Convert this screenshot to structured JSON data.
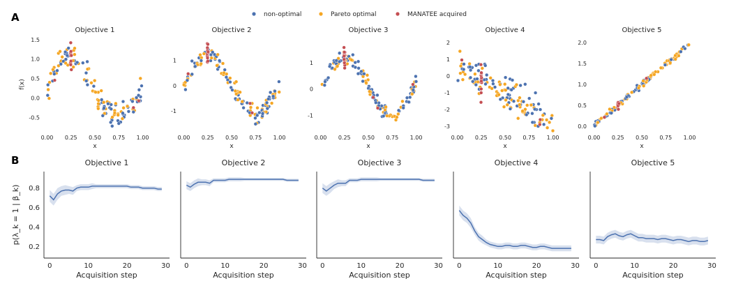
{
  "panel_labels": [
    "A",
    "B"
  ],
  "legend": {
    "position": "top-center",
    "entries": [
      {
        "label": "non-optimal",
        "color": "#4c72b0"
      },
      {
        "label": "Pareto optimal",
        "color": "#f5a623"
      },
      {
        "label": "MANATEE acquired",
        "color": "#c44e52"
      }
    ]
  },
  "chart_data": [
    {
      "type": "scatter",
      "title": "Objective 1",
      "xlabel": "x",
      "ylabel": "f(x)",
      "xlim": [
        -0.04,
        1.04
      ],
      "ylim": [
        -0.85,
        1.55
      ],
      "xticks": [
        "0.00",
        "0.25",
        "0.50",
        "0.75",
        "1.00"
      ],
      "xtick_values": [
        0,
        0.25,
        0.5,
        0.75,
        1.0
      ],
      "yticks": [
        "-0.5",
        "0.0",
        "0.5",
        "1.0",
        "1.5"
      ],
      "ytick_values": [
        -0.5,
        0,
        0.5,
        1.0,
        1.5
      ]
    },
    {
      "type": "scatter",
      "title": "Objective 2",
      "xlabel": "x",
      "ylabel": "",
      "xlim": [
        -0.04,
        1.04
      ],
      "ylim": [
        -1.8,
        1.9
      ],
      "xticks": [
        "0.00",
        "0.25",
        "0.50",
        "0.75",
        "1.00"
      ],
      "xtick_values": [
        0,
        0.25,
        0.5,
        0.75,
        1.0
      ],
      "yticks": [
        "-1",
        "0",
        "1"
      ],
      "ytick_values": [
        -1,
        0,
        1
      ]
    },
    {
      "type": "scatter",
      "title": "Objective 3",
      "xlabel": "x",
      "ylabel": "",
      "xlim": [
        -0.04,
        1.04
      ],
      "ylim": [
        -1.6,
        1.95
      ],
      "xticks": [
        "0.00",
        "0.25",
        "0.50",
        "0.75",
        "1.00"
      ],
      "xtick_values": [
        0,
        0.25,
        0.5,
        0.75,
        1.0
      ],
      "yticks": [
        "-1",
        "0",
        "1"
      ],
      "ytick_values": [
        -1,
        0,
        1
      ]
    },
    {
      "type": "scatter",
      "title": "Objective 4",
      "xlabel": "x",
      "ylabel": "",
      "xlim": [
        -0.04,
        1.04
      ],
      "ylim": [
        -3.3,
        2.3
      ],
      "xticks": [
        "0.00",
        "0.25",
        "0.50",
        "0.75",
        "1.00"
      ],
      "xtick_values": [
        0,
        0.25,
        0.5,
        0.75,
        1.0
      ],
      "yticks": [
        "-3",
        "-2",
        "-1",
        "0",
        "1",
        "2"
      ],
      "ytick_values": [
        -3,
        -2,
        -1,
        0,
        1,
        2
      ]
    },
    {
      "type": "scatter",
      "title": "Objective 5",
      "xlabel": "x",
      "ylabel": "",
      "xlim": [
        -0.04,
        1.04
      ],
      "ylim": [
        -0.12,
        2.12
      ],
      "xticks": [
        "0.00",
        "0.25",
        "0.50",
        "0.75",
        "1.00"
      ],
      "xtick_values": [
        0,
        0.25,
        0.5,
        0.75,
        1.0
      ],
      "yticks": [
        "0.0",
        "0.5",
        "1.0",
        "1.5",
        "2.0"
      ],
      "ytick_values": [
        0,
        0.5,
        1.0,
        1.5,
        2.0
      ]
    },
    {
      "type": "line",
      "title": "Objective 1",
      "xlabel": "Acquisition step",
      "ylabel": "p(λ_k = 1 | β_k)",
      "xlim": [
        -1.5,
        31
      ],
      "ylim": [
        0.08,
        0.97
      ],
      "xticks": [
        "0",
        "10",
        "20",
        "30"
      ],
      "xtick_values": [
        0,
        10,
        20,
        30
      ],
      "yticks": [
        "0.2",
        "0.4",
        "0.6",
        "0.8"
      ],
      "ytick_values": [
        0.2,
        0.4,
        0.6,
        0.8
      ],
      "x": [
        0,
        1,
        2,
        3,
        4,
        5,
        6,
        7,
        8,
        9,
        10,
        11,
        12,
        13,
        14,
        15,
        16,
        17,
        18,
        19,
        20,
        21,
        22,
        23,
        24,
        25,
        26,
        27,
        28,
        29
      ],
      "y": [
        0.72,
        0.68,
        0.74,
        0.77,
        0.78,
        0.78,
        0.77,
        0.8,
        0.81,
        0.81,
        0.81,
        0.82,
        0.82,
        0.82,
        0.82,
        0.82,
        0.82,
        0.82,
        0.82,
        0.82,
        0.82,
        0.81,
        0.81,
        0.81,
        0.8,
        0.8,
        0.8,
        0.8,
        0.79,
        0.79
      ],
      "band": [
        0.06,
        0.06,
        0.06,
        0.05,
        0.05,
        0.04,
        0.04,
        0.03,
        0.03,
        0.03,
        0.03,
        0.03,
        0.02,
        0.02,
        0.02,
        0.02,
        0.02,
        0.02,
        0.02,
        0.02,
        0.02,
        0.02,
        0.02,
        0.02,
        0.02,
        0.02,
        0.02,
        0.02,
        0.02,
        0.02
      ]
    },
    {
      "type": "line",
      "title": "Objective 2",
      "xlabel": "Acquisition step",
      "ylabel": "",
      "xlim": [
        -1.5,
        31
      ],
      "ylim": [
        0.08,
        0.97
      ],
      "xticks": [
        "0",
        "10",
        "20",
        "30"
      ],
      "xtick_values": [
        0,
        10,
        20,
        30
      ],
      "yticks": [],
      "ytick_values": [],
      "x": [
        0,
        1,
        2,
        3,
        4,
        5,
        6,
        7,
        8,
        9,
        10,
        11,
        12,
        13,
        14,
        15,
        16,
        17,
        18,
        19,
        20,
        21,
        22,
        23,
        24,
        25,
        26,
        27,
        28,
        29
      ],
      "y": [
        0.83,
        0.81,
        0.84,
        0.86,
        0.86,
        0.86,
        0.85,
        0.88,
        0.88,
        0.88,
        0.88,
        0.89,
        0.89,
        0.89,
        0.89,
        0.89,
        0.89,
        0.89,
        0.89,
        0.89,
        0.89,
        0.89,
        0.89,
        0.89,
        0.89,
        0.89,
        0.88,
        0.88,
        0.88,
        0.88
      ],
      "band": [
        0.04,
        0.04,
        0.04,
        0.04,
        0.03,
        0.03,
        0.03,
        0.02,
        0.02,
        0.02,
        0.02,
        0.02,
        0.02,
        0.02,
        0.02,
        0.015,
        0.015,
        0.015,
        0.015,
        0.015,
        0.015,
        0.015,
        0.015,
        0.015,
        0.015,
        0.015,
        0.015,
        0.015,
        0.015,
        0.015
      ]
    },
    {
      "type": "line",
      "title": "Objective 3",
      "xlabel": "Acquisition step",
      "ylabel": "",
      "xlim": [
        -1.5,
        31
      ],
      "ylim": [
        0.08,
        0.97
      ],
      "xticks": [
        "0",
        "10",
        "20",
        "30"
      ],
      "xtick_values": [
        0,
        10,
        20,
        30
      ],
      "yticks": [],
      "ytick_values": [],
      "x": [
        0,
        1,
        2,
        3,
        4,
        5,
        6,
        7,
        8,
        9,
        10,
        11,
        12,
        13,
        14,
        15,
        16,
        17,
        18,
        19,
        20,
        21,
        22,
        23,
        24,
        25,
        26,
        27,
        28,
        29
      ],
      "y": [
        0.8,
        0.77,
        0.8,
        0.83,
        0.85,
        0.85,
        0.85,
        0.88,
        0.88,
        0.88,
        0.89,
        0.89,
        0.89,
        0.89,
        0.89,
        0.89,
        0.89,
        0.89,
        0.89,
        0.89,
        0.89,
        0.89,
        0.89,
        0.89,
        0.89,
        0.89,
        0.88,
        0.88,
        0.88,
        0.88
      ],
      "band": [
        0.05,
        0.05,
        0.05,
        0.04,
        0.04,
        0.03,
        0.03,
        0.02,
        0.02,
        0.02,
        0.02,
        0.02,
        0.02,
        0.02,
        0.02,
        0.015,
        0.015,
        0.015,
        0.015,
        0.015,
        0.015,
        0.015,
        0.015,
        0.015,
        0.015,
        0.015,
        0.015,
        0.015,
        0.015,
        0.015
      ]
    },
    {
      "type": "line",
      "title": "Objective 4",
      "xlabel": "Acquisition step",
      "ylabel": "",
      "xlim": [
        -1.5,
        31
      ],
      "ylim": [
        0.08,
        0.97
      ],
      "xticks": [
        "0",
        "10",
        "20",
        "30"
      ],
      "xtick_values": [
        0,
        10,
        20,
        30
      ],
      "yticks": [],
      "ytick_values": [],
      "x": [
        0,
        1,
        2,
        3,
        4,
        5,
        6,
        7,
        8,
        9,
        10,
        11,
        12,
        13,
        14,
        15,
        16,
        17,
        18,
        19,
        20,
        21,
        22,
        23,
        24,
        25,
        26,
        27,
        28,
        29
      ],
      "y": [
        0.57,
        0.52,
        0.49,
        0.44,
        0.36,
        0.3,
        0.27,
        0.24,
        0.22,
        0.21,
        0.2,
        0.2,
        0.21,
        0.21,
        0.2,
        0.2,
        0.21,
        0.21,
        0.2,
        0.19,
        0.19,
        0.2,
        0.2,
        0.19,
        0.18,
        0.18,
        0.18,
        0.18,
        0.18,
        0.18
      ],
      "band": [
        0.05,
        0.05,
        0.05,
        0.05,
        0.04,
        0.04,
        0.04,
        0.03,
        0.03,
        0.03,
        0.03,
        0.03,
        0.03,
        0.03,
        0.03,
        0.03,
        0.03,
        0.03,
        0.03,
        0.03,
        0.03,
        0.03,
        0.03,
        0.03,
        0.03,
        0.03,
        0.03,
        0.03,
        0.03,
        0.03
      ]
    },
    {
      "type": "line",
      "title": "Objective 5",
      "xlabel": "Acquisition step",
      "ylabel": "",
      "xlim": [
        -1.5,
        31
      ],
      "ylim": [
        0.08,
        0.97
      ],
      "xticks": [
        "0",
        "10",
        "20",
        "30"
      ],
      "xtick_values": [
        0,
        10,
        20,
        30
      ],
      "yticks": [],
      "ytick_values": [],
      "x": [
        0,
        1,
        2,
        3,
        4,
        5,
        6,
        7,
        8,
        9,
        10,
        11,
        12,
        13,
        14,
        15,
        16,
        17,
        18,
        19,
        20,
        21,
        22,
        23,
        24,
        25,
        26,
        27,
        28,
        29
      ],
      "y": [
        0.27,
        0.27,
        0.26,
        0.3,
        0.32,
        0.33,
        0.31,
        0.3,
        0.32,
        0.33,
        0.31,
        0.29,
        0.29,
        0.28,
        0.28,
        0.28,
        0.27,
        0.28,
        0.28,
        0.27,
        0.26,
        0.27,
        0.27,
        0.26,
        0.25,
        0.26,
        0.26,
        0.25,
        0.25,
        0.26
      ],
      "band": [
        0.04,
        0.04,
        0.04,
        0.04,
        0.04,
        0.04,
        0.04,
        0.04,
        0.04,
        0.04,
        0.04,
        0.04,
        0.04,
        0.04,
        0.04,
        0.04,
        0.04,
        0.04,
        0.04,
        0.04,
        0.04,
        0.04,
        0.04,
        0.04,
        0.04,
        0.04,
        0.04,
        0.04,
        0.04,
        0.04
      ]
    }
  ]
}
